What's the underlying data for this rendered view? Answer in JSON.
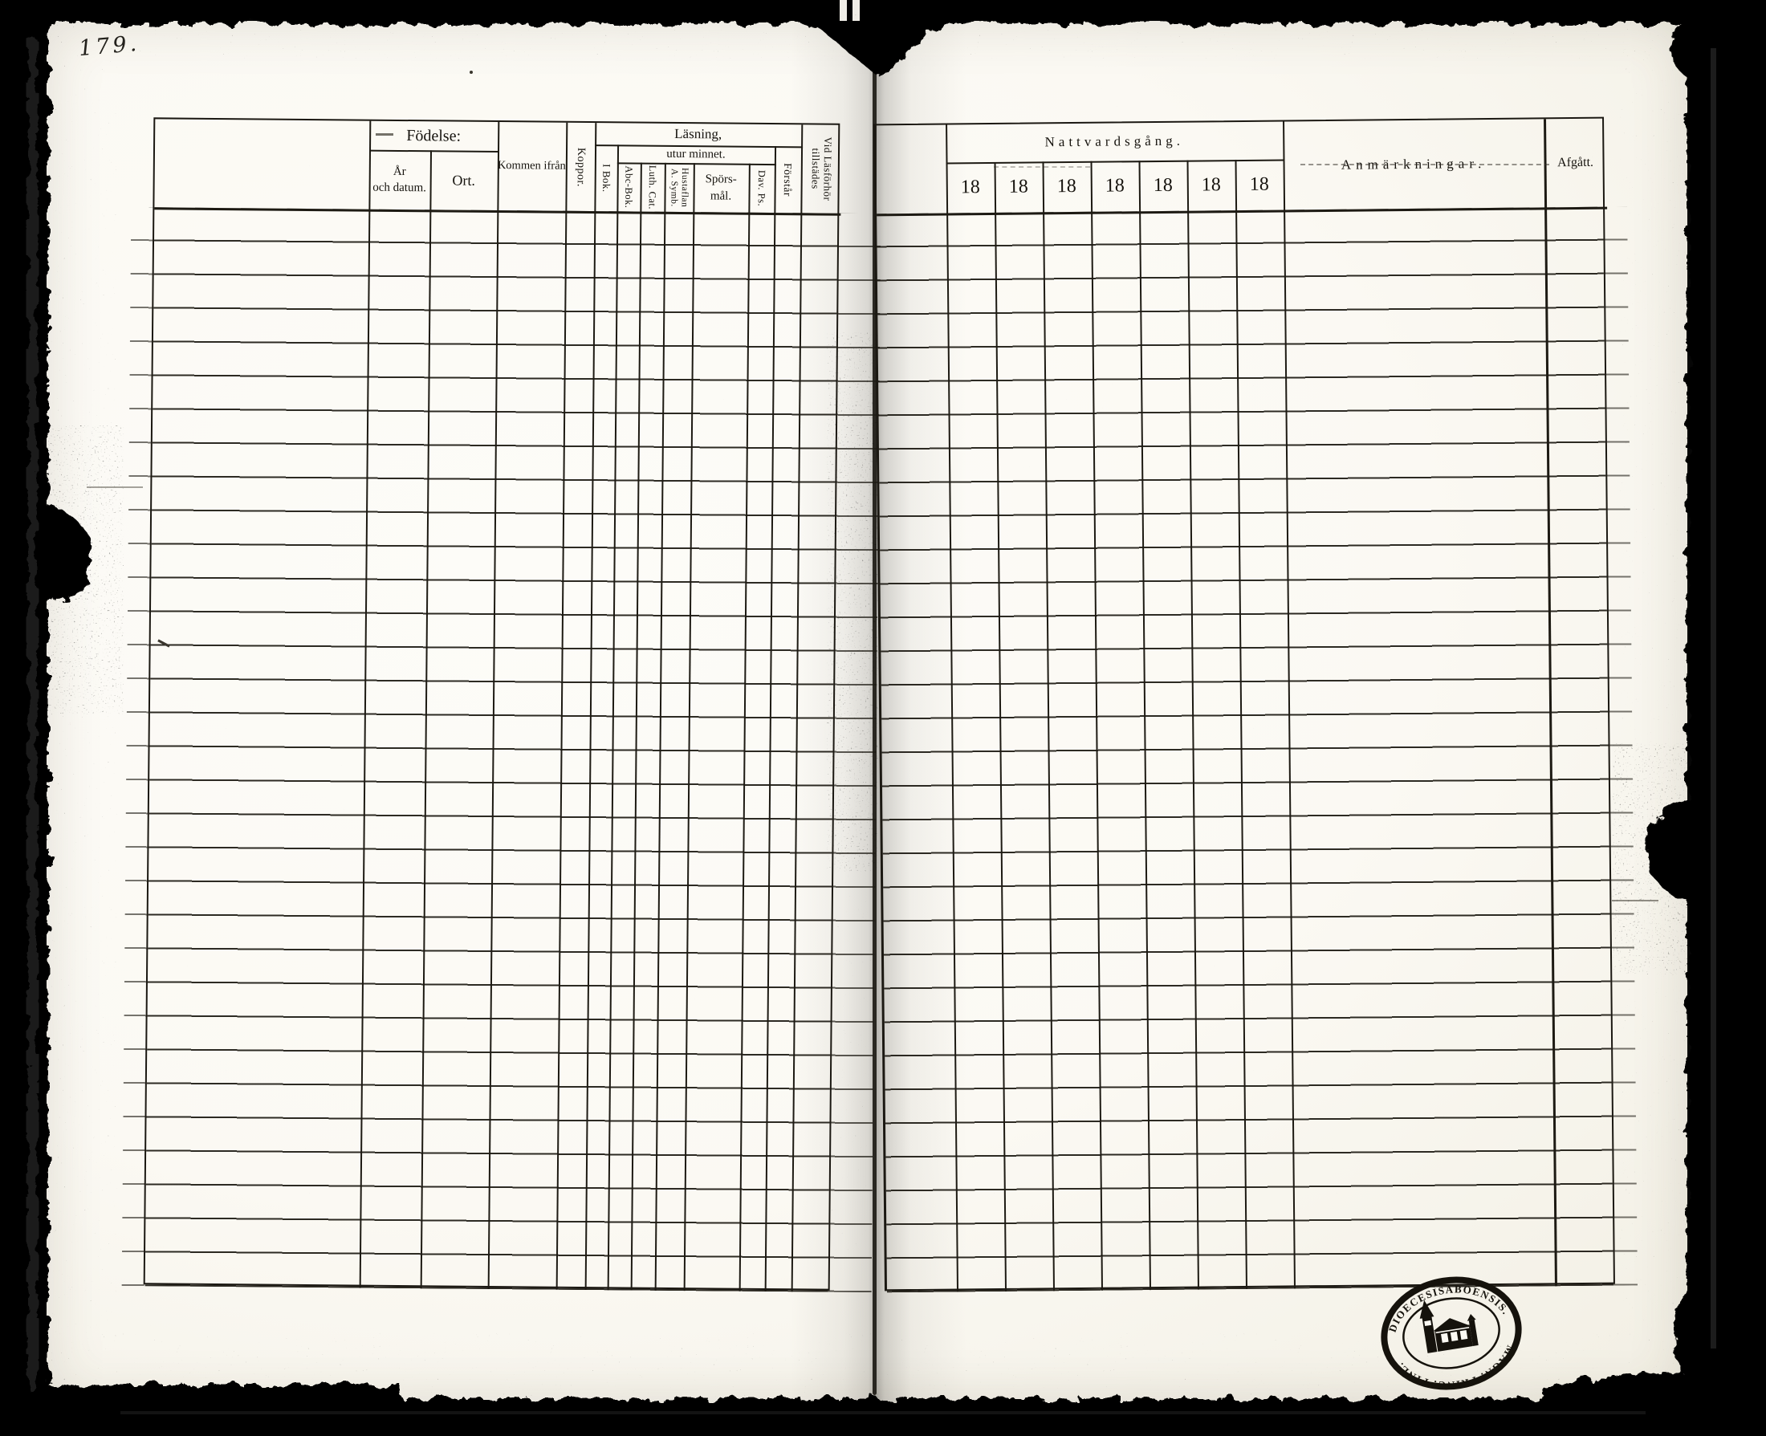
{
  "folio": {
    "number": "179."
  },
  "left_page": {
    "header": {
      "fodelse": {
        "label": "Födelse:",
        "ar_och_datum": "År\noch datum.",
        "ort": "Ort."
      },
      "kommen_ifran": "Kommen ifrån",
      "koppor": "Koppor.",
      "lasning": {
        "label": "Läsning,",
        "i_bok": "I Bok.",
        "utur_minnet": {
          "label": "utur minnet.",
          "abc_bok": "Abc-Bok.",
          "luth_cat": "Luth. Cat.",
          "hustaflan_a_symb": "Hustaflan\nA. Symb.",
          "sporsmal": "Spörs-\nmål.",
          "dav_ps": "Dav. Ps."
        },
        "forstar": "Förstår"
      },
      "vid_lasforhor_tillstades": "Vid Läsförhör\ntillstädes"
    },
    "body_rows": 32
  },
  "right_page": {
    "header": {
      "nattvardsgang": "Nattvardsgång.",
      "year_columns": [
        "18",
        "18",
        "18",
        "18",
        "18",
        "18",
        "18"
      ],
      "anmarkningar": "Anmärkningar.",
      "afgatt": "Afgått."
    },
    "body_rows": 32
  },
  "stamp": {
    "arc_top_text": "DIOECESISABOENSIS.",
    "arc_bottom_text": "MAGN: PRINC: FINL."
  },
  "colors": {
    "paper": "#fbf9f3",
    "ink": "#1d1a13",
    "background": "#060606"
  }
}
